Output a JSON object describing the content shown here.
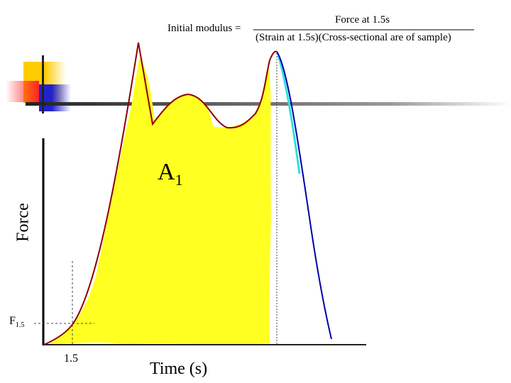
{
  "formula": {
    "lhs": "Initial modulus =",
    "numerator": "Force at 1.5s",
    "denominator": "(Strain at 1.5s)(Cross-sectional are of sample)"
  },
  "diagram": {
    "area_label": "A",
    "area_label_sub": "1",
    "y_axis_label": "Force",
    "x_axis_label": "Time (s)",
    "force_marker": "F",
    "force_marker_sub": "1.5",
    "time_tick": "1.5"
  },
  "colors": {
    "fill": "#ffff22",
    "curve": "#8b0000",
    "descent": "#0000aa",
    "descent_highlight": "#33dddd"
  }
}
